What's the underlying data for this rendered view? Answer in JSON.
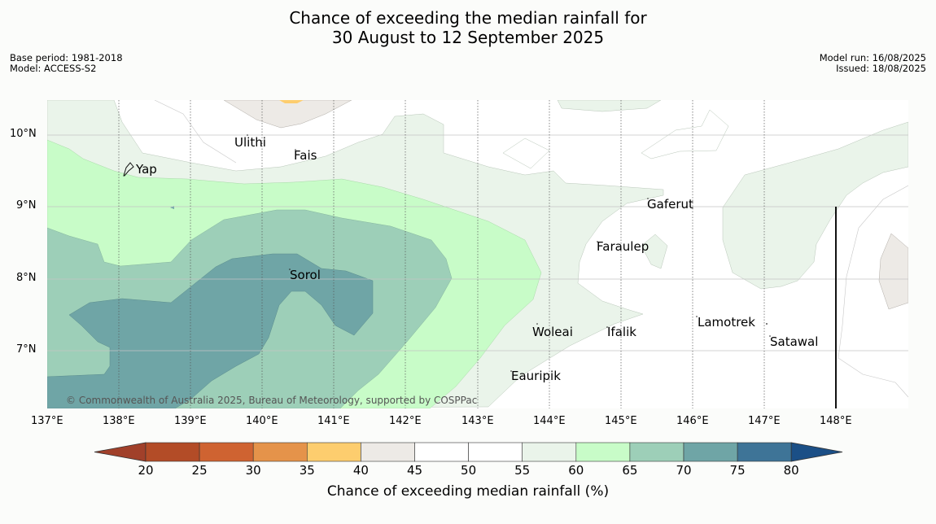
{
  "title": {
    "line1": "Chance of exceeding the median rainfall for",
    "line2": "30 August to 12 September 2025"
  },
  "meta": {
    "base_period": "Base period: 1981-2018",
    "model": "Model: ACCESS-S2",
    "model_run": "Model run: 16/08/2025",
    "issued": "Issued: 18/08/2025"
  },
  "axes": {
    "lon_labels": [
      "137°E",
      "138°E",
      "139°E",
      "140°E",
      "141°E",
      "142°E",
      "143°E",
      "144°E",
      "145°E",
      "146°E",
      "147°E",
      "148°E"
    ],
    "lat_labels": [
      "10°N",
      "9°N",
      "8°N",
      "7°N"
    ]
  },
  "places": [
    "Ulithi",
    "Fais",
    "Yap",
    "Gaferut",
    "Faraulep",
    "Sorol",
    "Woleai",
    "Ifalik",
    "Lamotrek",
    "Satawal",
    "Eauripik"
  ],
  "copyright": "© Commonwealth of Australia 2025, Bureau of Meteorology, supported by COSPPac",
  "colorbar": {
    "title": "Chance of exceeding median rainfall (%)",
    "ticks": [
      "20",
      "25",
      "30",
      "35",
      "40",
      "45",
      "50",
      "55",
      "60",
      "65",
      "70",
      "75",
      "80"
    ],
    "colors": [
      "#b34c27",
      "#cf6331",
      "#e5934a",
      "#fdcd6e",
      "#edeae6",
      "#ffffff",
      "#ffffff",
      "#eaf4ea",
      "#c8fcc8",
      "#9dcfb8",
      "#6fa5a6",
      "#3e7497"
    ],
    "under_color": "#a1402a",
    "over_color": "#1b4f86"
  }
}
